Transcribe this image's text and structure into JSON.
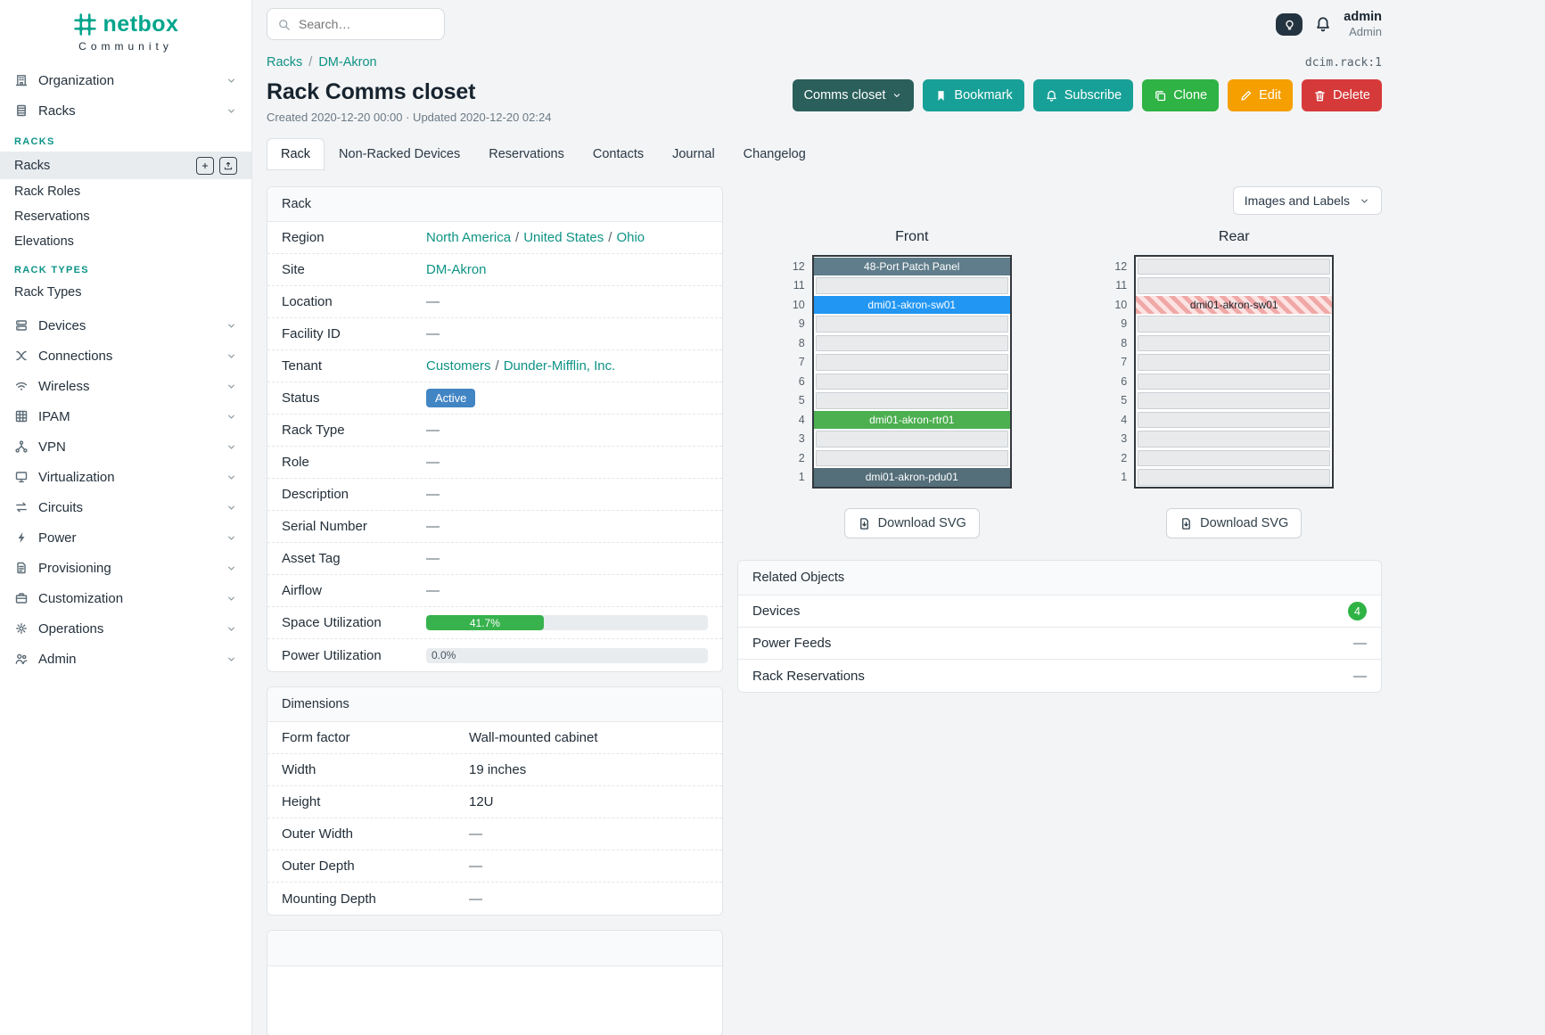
{
  "brand": {
    "name": "netbox",
    "tagline": "Community"
  },
  "search": {
    "placeholder": "Search…"
  },
  "user": {
    "name": "admin",
    "role": "Admin"
  },
  "sidebar": {
    "items_top": [
      {
        "label": "Organization",
        "icon": "building-icon"
      },
      {
        "label": "Racks",
        "icon": "rack-icon",
        "expanded": true
      }
    ],
    "racks_menu": {
      "sections": [
        {
          "header": "RACKS",
          "items": [
            {
              "label": "Racks",
              "active": true,
              "actions": [
                "add",
                "import"
              ]
            },
            {
              "label": "Rack Roles"
            },
            {
              "label": "Reservations"
            },
            {
              "label": "Elevations"
            }
          ]
        },
        {
          "header": "RACK TYPES",
          "items": [
            {
              "label": "Rack Types"
            }
          ]
        }
      ]
    },
    "items_bottom": [
      {
        "label": "Devices",
        "icon": "server-icon"
      },
      {
        "label": "Connections",
        "icon": "cable-icon"
      },
      {
        "label": "Wireless",
        "icon": "wifi-icon"
      },
      {
        "label": "IPAM",
        "icon": "grid-icon"
      },
      {
        "label": "VPN",
        "icon": "network-icon"
      },
      {
        "label": "Virtualization",
        "icon": "monitor-icon"
      },
      {
        "label": "Circuits",
        "icon": "transfer-icon"
      },
      {
        "label": "Power",
        "icon": "bolt-icon"
      },
      {
        "label": "Provisioning",
        "icon": "document-icon"
      },
      {
        "label": "Customization",
        "icon": "briefcase-icon"
      },
      {
        "label": "Operations",
        "icon": "gear-icon"
      },
      {
        "label": "Admin",
        "icon": "users-icon"
      }
    ]
  },
  "breadcrumb": {
    "items": [
      "Racks",
      "DM-Akron"
    ],
    "separator": "/"
  },
  "object_id": "dcim.rack:1",
  "page": {
    "title": "Rack Comms closet",
    "meta": "Created 2020-12-20 00:00 · Updated 2020-12-20 02:24"
  },
  "actions": [
    {
      "label": "Comms closet",
      "style": "dark",
      "caret": true
    },
    {
      "label": "Bookmark",
      "style": "teal",
      "icon": "bookmark-icon"
    },
    {
      "label": "Subscribe",
      "style": "teal",
      "icon": "bell-icon"
    },
    {
      "label": "Clone",
      "style": "green",
      "icon": "copy-icon"
    },
    {
      "label": "Edit",
      "style": "orange",
      "icon": "pencil-icon"
    },
    {
      "label": "Delete",
      "style": "red",
      "icon": "trash-icon"
    }
  ],
  "tabs": [
    {
      "label": "Rack",
      "active": true
    },
    {
      "label": "Non-Racked Devices"
    },
    {
      "label": "Reservations"
    },
    {
      "label": "Contacts"
    },
    {
      "label": "Journal"
    },
    {
      "label": "Changelog"
    }
  ],
  "rack_panel": {
    "title": "Rack",
    "rows": [
      {
        "label": "Region",
        "type": "links",
        "links": [
          "North America",
          "United States",
          "Ohio"
        ]
      },
      {
        "label": "Site",
        "type": "links",
        "links": [
          "DM-Akron"
        ]
      },
      {
        "label": "Location",
        "type": "text",
        "value": "—"
      },
      {
        "label": "Facility ID",
        "type": "text",
        "value": "—"
      },
      {
        "label": "Tenant",
        "type": "links",
        "links": [
          "Customers",
          "Dunder-Mifflin, Inc."
        ]
      },
      {
        "label": "Status",
        "type": "badge",
        "value": "Active",
        "color": "#4285c4"
      },
      {
        "label": "Rack Type",
        "type": "text",
        "value": "—"
      },
      {
        "label": "Role",
        "type": "text",
        "value": "—"
      },
      {
        "label": "Description",
        "type": "text",
        "value": "—"
      },
      {
        "label": "Serial Number",
        "type": "text",
        "value": "—"
      },
      {
        "label": "Asset Tag",
        "type": "text",
        "value": "—"
      },
      {
        "label": "Airflow",
        "type": "text",
        "value": "—"
      },
      {
        "label": "Space Utilization",
        "type": "progress",
        "value": 41.7,
        "display": "41.7%",
        "color": "#37b24d"
      },
      {
        "label": "Power Utilization",
        "type": "progress",
        "value": 0,
        "display": "0.0%",
        "color": "#37b24d"
      }
    ]
  },
  "dimensions_panel": {
    "title": "Dimensions",
    "rows": [
      {
        "label": "Form factor",
        "type": "text",
        "value": "Wall-mounted cabinet"
      },
      {
        "label": "Width",
        "type": "text",
        "value": "19 inches"
      },
      {
        "label": "Height",
        "type": "text",
        "value": "12U"
      },
      {
        "label": "Outer Width",
        "type": "text",
        "value": "—"
      },
      {
        "label": "Outer Depth",
        "type": "text",
        "value": "—"
      },
      {
        "label": "Mounting Depth",
        "type": "text",
        "value": "—"
      }
    ]
  },
  "elevations": {
    "toggle_label": "Images and Labels",
    "download_label": "Download SVG",
    "units": 12,
    "views": [
      {
        "title": "Front",
        "devices": [
          {
            "unit": 12,
            "label": "48-Port Patch Panel",
            "color": "#607d8b",
            "text": "#ffffff"
          },
          {
            "unit": 10,
            "label": "dmi01-akron-sw01",
            "color": "#2196f3",
            "text": "#ffffff"
          },
          {
            "unit": 4,
            "label": "dmi01-akron-rtr01",
            "color": "#4caf50",
            "text": "#ffffff"
          },
          {
            "unit": 1,
            "label": "dmi01-akron-pdu01",
            "color": "#546e7a",
            "text": "#ffffff"
          }
        ]
      },
      {
        "title": "Rear",
        "devices": [
          {
            "unit": 10,
            "label": "dmi01-akron-sw01",
            "striped": true,
            "text": "#212a32"
          }
        ]
      }
    ]
  },
  "related_objects": {
    "title": "Related Objects",
    "rows": [
      {
        "label": "Devices",
        "badge": "4",
        "badge_color": "#2fb344"
      },
      {
        "label": "Power Feeds",
        "value": "—"
      },
      {
        "label": "Rack Reservations",
        "value": "—"
      }
    ]
  }
}
